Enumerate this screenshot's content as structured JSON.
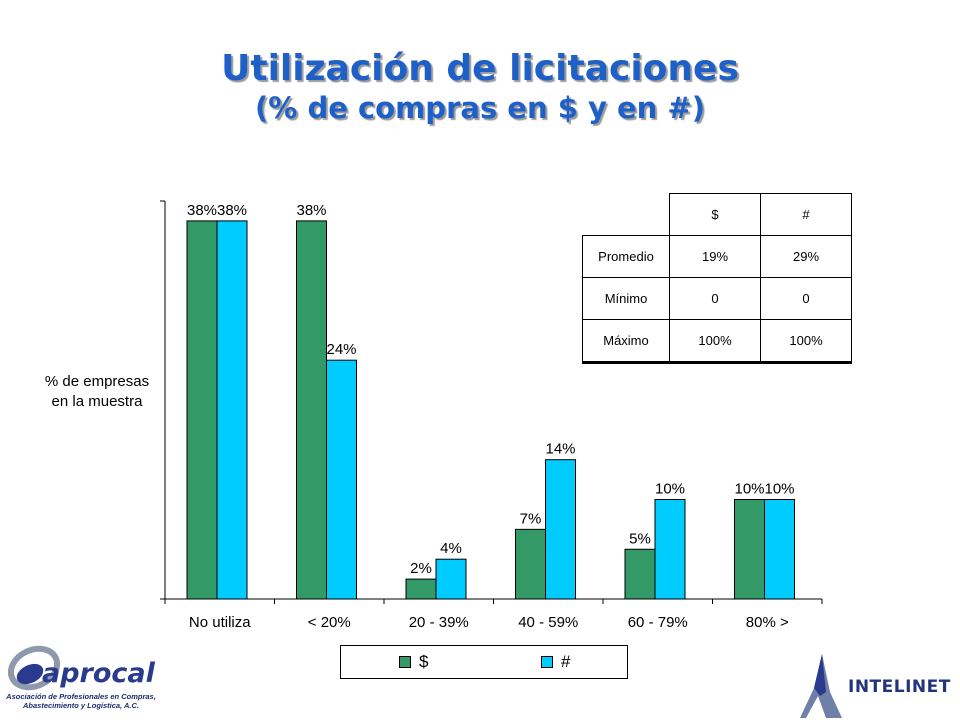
{
  "title": "Utilización de licitaciones",
  "subtitle": "(% de compras en $ y en #)",
  "chart_data": {
    "type": "bar",
    "ylabel": "% de empresas en la muestra",
    "ylabel_lines": [
      "% de empresas",
      "en la muestra"
    ],
    "categories": [
      "No utiliza",
      "< 20%",
      "20 - 39%",
      "40 - 59%",
      "60 - 79%",
      "80% >"
    ],
    "series": [
      {
        "name": "$",
        "values": [
          38,
          38,
          2,
          7,
          5,
          10
        ],
        "labels": [
          "38%",
          "38%",
          "2%",
          "7%",
          "5%",
          "10%"
        ],
        "color": "#339966"
      },
      {
        "name": "#",
        "values": [
          38,
          24,
          4,
          14,
          10,
          10
        ],
        "labels": [
          "38%",
          "24%",
          "4%",
          "14%",
          "10%",
          "10%"
        ],
        "color": "#00ccff"
      }
    ],
    "ylim": [
      0,
      40
    ],
    "grid": false,
    "legend": "bottom"
  },
  "stats_table": {
    "headers": [
      "$",
      "#"
    ],
    "rows": [
      {
        "label": "Promedio",
        "dollar": "19%",
        "count": "29%"
      },
      {
        "label": "Mínimo",
        "dollar": "0",
        "count": "0"
      },
      {
        "label": "Máximo",
        "dollar": "100%",
        "count": "100%"
      }
    ]
  },
  "logos": {
    "left_name": "aprocal",
    "left_tagline_1": "Asociación de Profesionales en Compras,",
    "left_tagline_2": "Abastecimiento y Logística, A.C.",
    "right_name": "INTELINET"
  }
}
